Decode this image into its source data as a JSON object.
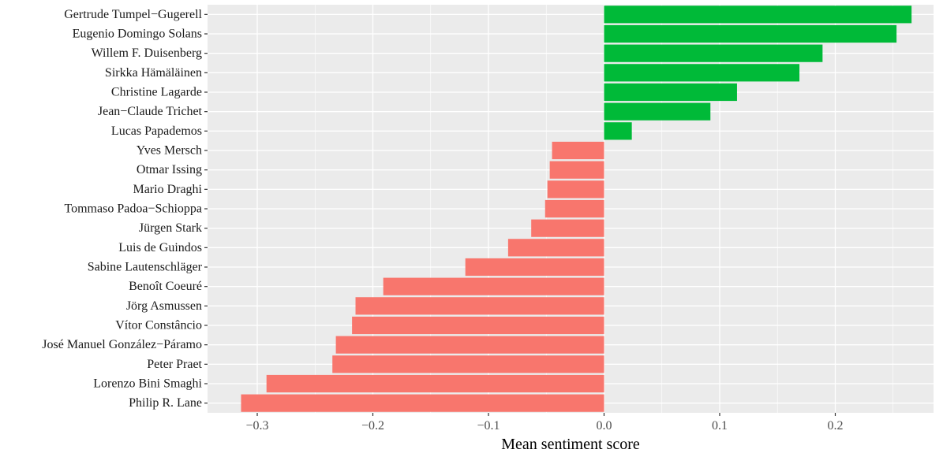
{
  "chart_data": {
    "type": "bar",
    "orientation": "horizontal",
    "title": "",
    "xlabel": "Mean sentiment score",
    "ylabel": "",
    "xlim": [
      -0.343,
      0.285
    ],
    "x_ticks": [
      -0.3,
      -0.2,
      -0.1,
      0.0,
      0.1,
      0.2
    ],
    "x_tick_labels": [
      "−0.3",
      "−0.2",
      "−0.1",
      "0.0",
      "0.1",
      "0.2"
    ],
    "grid": true,
    "legend": "none",
    "colors": {
      "positive": "#00BA38",
      "negative": "#F8766D",
      "panel": "#EBEBEB",
      "grid": "#FFFFFF"
    },
    "categories": [
      "Gertrude Tumpel−Gugerell",
      "Eugenio Domingo Solans",
      "Willem F. Duisenberg",
      "Sirkka Hämäläinen",
      "Christine Lagarde",
      "Jean−Claude Trichet",
      "Lucas Papademos",
      "Yves Mersch",
      "Otmar Issing",
      "Mario Draghi",
      "Tommaso Padoa−Schioppa",
      "Jürgen Stark",
      "Luis de Guindos",
      "Sabine Lautenschläger",
      "Benoît Coeuré",
      "Jörg Asmussen",
      "Vítor Constâncio",
      "José Manuel González−Páramo",
      "Peter Praet",
      "Lorenzo Bini Smaghi",
      "Philip R. Lane"
    ],
    "values": [
      0.266,
      0.253,
      0.189,
      0.169,
      0.115,
      0.092,
      0.024,
      -0.045,
      -0.047,
      -0.049,
      -0.051,
      -0.063,
      -0.083,
      -0.12,
      -0.191,
      -0.215,
      -0.218,
      -0.232,
      -0.235,
      -0.292,
      -0.314
    ]
  }
}
